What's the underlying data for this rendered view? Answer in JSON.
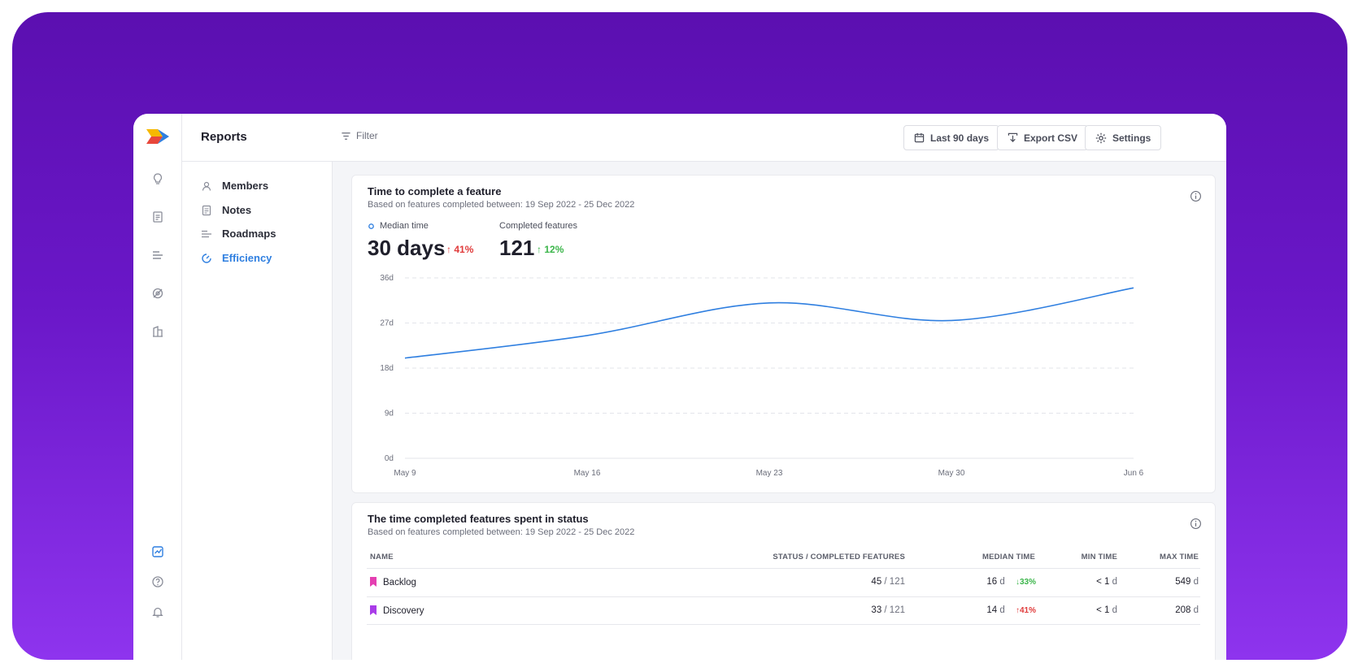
{
  "header": {
    "title": "Reports",
    "filter_label": "Filter",
    "buttons": {
      "date_range": "Last 90 days",
      "export": "Export CSV",
      "settings": "Settings"
    }
  },
  "rail": {
    "top_icons": [
      "lightbulb-icon",
      "document-icon",
      "roadmap-icon",
      "eye-off-icon",
      "buildings-icon"
    ],
    "bottom_icons": [
      "reports-icon",
      "help-icon",
      "bell-icon"
    ]
  },
  "subnav": {
    "items": [
      {
        "label": "Members",
        "icon": "members-icon"
      },
      {
        "label": "Notes",
        "icon": "notes-icon"
      },
      {
        "label": "Roadmaps",
        "icon": "roadmaps-icon"
      },
      {
        "label": "Efficiency",
        "icon": "efficiency-icon",
        "active": true
      }
    ]
  },
  "colors": {
    "brand_purple": "#5b0fb0",
    "accent_blue": "#2f7fe0",
    "negative": "#e03b3b",
    "positive": "#3bb54a"
  },
  "feature_card": {
    "title": "Time to complete a feature",
    "subtitle": "Based on features completed between: 19 Sep 2022 - 25 Dec 2022",
    "median_label": "Median time",
    "median_value": "30 days",
    "median_delta": "41%",
    "completed_label": "Completed features",
    "completed_value": "121",
    "completed_delta": "12%"
  },
  "chart_data": {
    "type": "line",
    "x": [
      "May 9",
      "May 16",
      "May 23",
      "May 30",
      "Jun 6"
    ],
    "y_ticks": [
      "0d",
      "9d",
      "18d",
      "27d",
      "36d"
    ],
    "ylim": [
      0,
      36
    ],
    "series": [
      {
        "values": [
          20,
          24.5,
          31,
          27.5,
          34
        ]
      }
    ],
    "grid": true
  },
  "status_card": {
    "title": "The time completed features spent in status",
    "subtitle": "Based on features completed between: 19 Sep 2022 - 25 Dec 2022",
    "columns": [
      "NAME",
      "STATUS / COMPLETED FEATURES",
      "MEDIAN TIME",
      "MIN TIME",
      "MAX TIME"
    ],
    "rows": [
      {
        "name": "Backlog",
        "color": "#e43fb1",
        "status_count": "45",
        "status_total": "/ 121",
        "median": "16",
        "median_unit": "d",
        "median_delta": "33%",
        "delta_dir": "down",
        "min": "< 1",
        "min_unit": "d",
        "max": "549",
        "max_unit": "d"
      },
      {
        "name": "Discovery",
        "color": "#a93ce8",
        "status_count": "33",
        "status_total": "/ 121",
        "median": "14",
        "median_unit": "d",
        "median_delta": "41%",
        "delta_dir": "up",
        "min": "< 1",
        "min_unit": "d",
        "max": "208",
        "max_unit": "d"
      }
    ]
  }
}
